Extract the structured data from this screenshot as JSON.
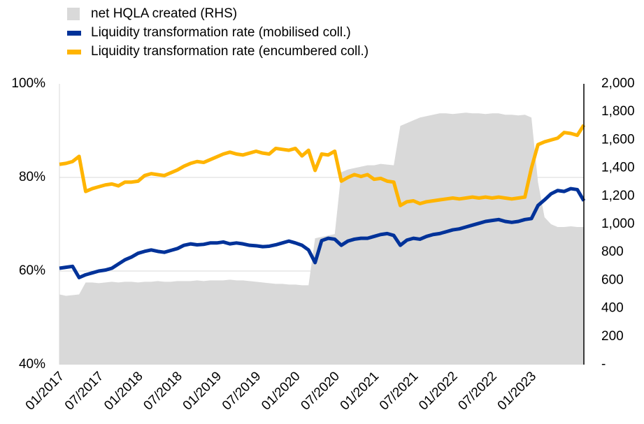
{
  "chart_data": {
    "type": "line",
    "categories": [
      "01/2017",
      null,
      null,
      null,
      null,
      null,
      "07/2017",
      null,
      null,
      null,
      null,
      null,
      "01/2018",
      null,
      null,
      null,
      null,
      null,
      "07/2018",
      null,
      null,
      null,
      null,
      null,
      "01/2019",
      null,
      null,
      null,
      null,
      null,
      "07/2019",
      null,
      null,
      null,
      null,
      null,
      "01/2020",
      null,
      null,
      null,
      null,
      null,
      "07/2020",
      null,
      null,
      null,
      null,
      null,
      "01/2021",
      null,
      null,
      null,
      null,
      null,
      "07/2021",
      null,
      null,
      null,
      null,
      null,
      "01/2022",
      null,
      null,
      null,
      null,
      null,
      "07/2022",
      null,
      null,
      null,
      null,
      null,
      "01/2023",
      null,
      null,
      null,
      null,
      null,
      null,
      null,
      null
    ],
    "series": [
      {
        "name": "net HQLA created (RHS)",
        "color": "#d9d9d9",
        "type": "area",
        "axis": "y2",
        "values": [
          500,
          490,
          495,
          500,
          585,
          585,
          580,
          585,
          590,
          585,
          590,
          590,
          585,
          590,
          590,
          595,
          590,
          590,
          595,
          595,
          595,
          600,
          595,
          600,
          600,
          600,
          605,
          600,
          600,
          595,
          590,
          585,
          580,
          575,
          575,
          570,
          570,
          565,
          565,
          900,
          910,
          920,
          930,
          1370,
          1390,
          1400,
          1410,
          1420,
          1420,
          1430,
          1425,
          1420,
          1700,
          1720,
          1740,
          1760,
          1770,
          1780,
          1790,
          1790,
          1785,
          1790,
          1795,
          1790,
          1790,
          1785,
          1790,
          1790,
          1780,
          1780,
          1775,
          1780,
          1760,
          1300,
          1050,
          1000,
          980,
          980,
          985,
          980,
          980
        ]
      },
      {
        "name": "Liquidity transformation rate (mobilised coll.)",
        "color": "#003299",
        "type": "line",
        "values": [
          60.6,
          60.8,
          61.0,
          58.6,
          59.2,
          59.6,
          60.0,
          60.2,
          60.6,
          61.5,
          62.4,
          63.0,
          63.8,
          64.2,
          64.5,
          64.2,
          64.0,
          64.4,
          64.8,
          65.5,
          65.8,
          65.6,
          65.7,
          66.0,
          66.0,
          66.2,
          65.8,
          66.0,
          65.8,
          65.5,
          65.4,
          65.2,
          65.3,
          65.6,
          66.0,
          66.4,
          66.0,
          65.5,
          64.5,
          61.8,
          66.5,
          67.0,
          66.8,
          65.5,
          66.4,
          66.8,
          67.0,
          67.0,
          67.4,
          67.8,
          68.0,
          67.6,
          65.5,
          66.6,
          67.0,
          66.8,
          67.4,
          67.8,
          68.0,
          68.4,
          68.8,
          69.0,
          69.4,
          69.8,
          70.2,
          70.6,
          70.8,
          71.0,
          70.6,
          70.4,
          70.6,
          71.0,
          71.2,
          74.0,
          75.2,
          76.5,
          77.2,
          77.0,
          77.6,
          77.4,
          75.0
        ]
      },
      {
        "name": "Liquidity transformation rate (encumbered coll.)",
        "color": "#ffb400",
        "type": "line",
        "values": [
          82.8,
          83.0,
          83.4,
          84.5,
          77.0,
          77.6,
          78.0,
          78.4,
          78.6,
          78.2,
          79.0,
          79.0,
          79.2,
          80.4,
          80.8,
          80.6,
          80.4,
          81.0,
          81.6,
          82.4,
          83.0,
          83.4,
          83.2,
          83.8,
          84.4,
          85.0,
          85.4,
          85.0,
          84.8,
          85.2,
          85.6,
          85.2,
          85.0,
          86.2,
          86.0,
          85.8,
          86.2,
          84.6,
          85.8,
          81.5,
          85.0,
          84.8,
          85.6,
          79.2,
          80.0,
          80.6,
          80.2,
          80.6,
          79.6,
          79.8,
          79.2,
          79.0,
          74.0,
          74.8,
          75.0,
          74.4,
          74.8,
          75.0,
          75.2,
          75.4,
          75.6,
          75.4,
          75.6,
          75.8,
          75.6,
          75.8,
          75.6,
          75.8,
          75.6,
          75.4,
          75.6,
          75.8,
          82.0,
          87.0,
          87.6,
          88.0,
          88.4,
          89.6,
          89.4,
          89.0,
          91.2
        ]
      }
    ],
    "ylim": [
      40,
      100
    ],
    "yticks": [
      {
        "value": 40,
        "label": "40%"
      },
      {
        "value": 60,
        "label": "60%"
      },
      {
        "value": 80,
        "label": "80%"
      },
      {
        "value": 100,
        "label": "100%"
      }
    ],
    "y2lim": [
      0,
      2000
    ],
    "y2ticks": [
      {
        "value": 0,
        "label": "-"
      },
      200,
      400,
      600,
      800,
      {
        "value": 1000,
        "label": "1,000"
      },
      {
        "value": 1200,
        "label": "1,200"
      },
      {
        "value": 1400,
        "label": "1,400"
      },
      {
        "value": 1600,
        "label": "1,600"
      },
      {
        "value": 1800,
        "label": "1,800"
      },
      {
        "value": 2000,
        "label": "2,000"
      }
    ],
    "grid": true,
    "legend": "top"
  }
}
